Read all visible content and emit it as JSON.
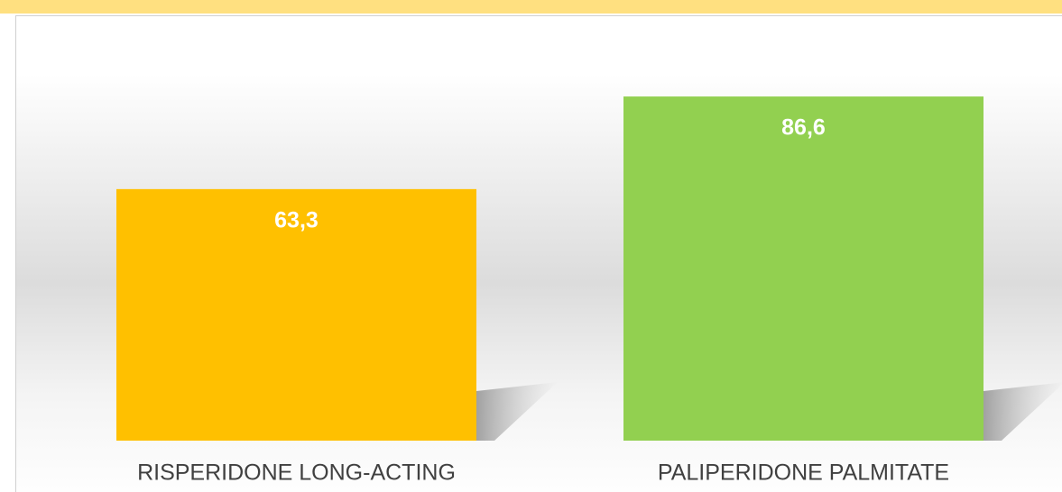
{
  "chart_data": {
    "type": "bar",
    "categories": [
      "RISPERIDONE LONG-ACTING",
      "PALIPERIDONE PALMITATE"
    ],
    "values": [
      63.3,
      86.6
    ],
    "value_labels": [
      "63,3",
      "86,6"
    ],
    "colors": [
      "#ffc000",
      "#92d050"
    ],
    "ylim": [
      0,
      100
    ]
  }
}
